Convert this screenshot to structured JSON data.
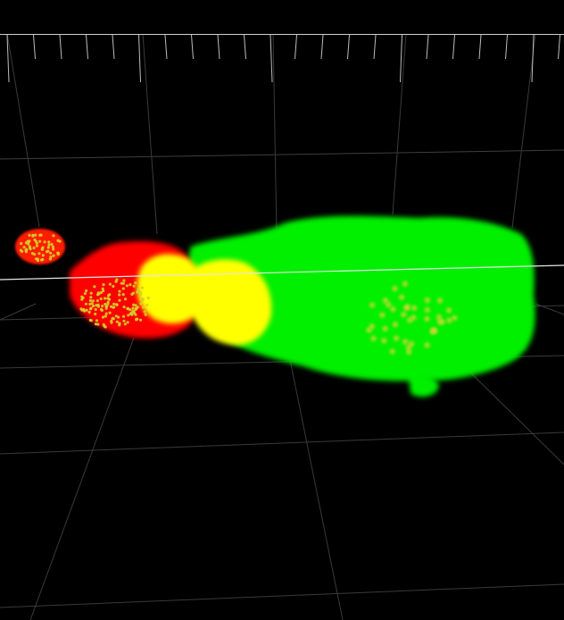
{
  "viewport": {
    "background": "#000000",
    "grid_color": "#5a5a5a",
    "tick_color": "#d0d0d0",
    "highlight_line_color": "#e6e6e6"
  },
  "volume": {
    "colors": {
      "green": "#00f000",
      "yellow": "#ffff00",
      "red": "#ff0000",
      "speckle": "#d4cf2a"
    }
  }
}
